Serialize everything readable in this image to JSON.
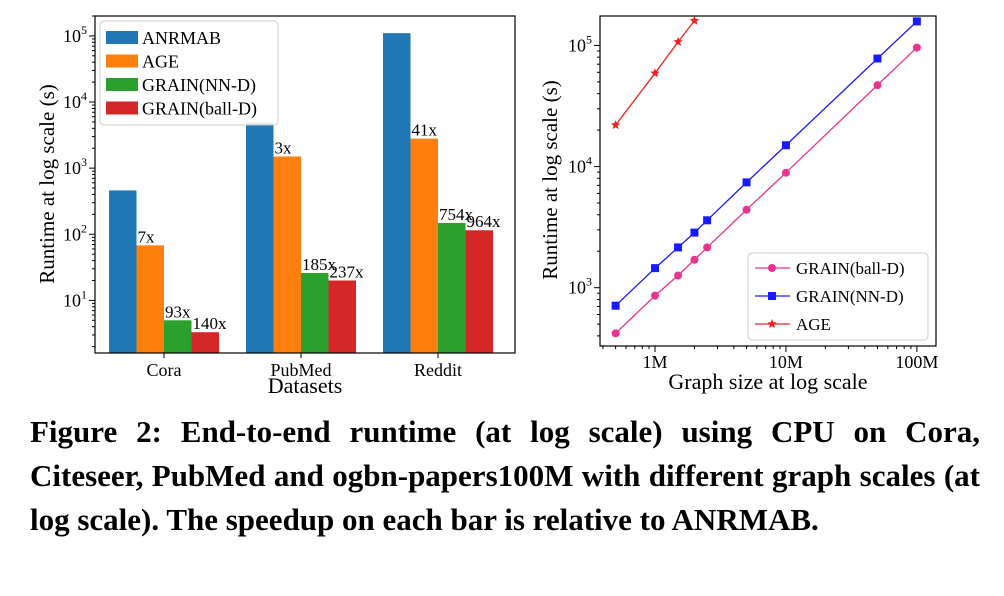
{
  "caption": "Figure 2: End-to-end runtime (at log scale) using CPU on Cora, Citeseer, PubMed and ogbn-papers100M with different graph scales (at log scale). The speedup on each bar is relative to ANRMAB.",
  "chart_data": [
    {
      "type": "bar",
      "scale": "log",
      "xlabel": "Datasets",
      "ylabel": "Runtime at log scale (s)",
      "categories": [
        "Cora",
        "PubMed",
        "Reddit"
      ],
      "ylim": [
        1.6,
        200000
      ],
      "yticks": [
        {
          "value": 10,
          "base": "10",
          "exp": "1"
        },
        {
          "value": 100,
          "base": "10",
          "exp": "2"
        },
        {
          "value": 1000,
          "base": "10",
          "exp": "3"
        },
        {
          "value": 10000,
          "base": "10",
          "exp": "4"
        },
        {
          "value": 100000,
          "base": "10",
          "exp": "5"
        }
      ],
      "legend_position": "top-left",
      "series": [
        {
          "name": "ANRMAB",
          "color": "#1f77b4",
          "values": [
            460,
            4900,
            110000
          ],
          "labels": [
            "",
            "",
            ""
          ]
        },
        {
          "name": "AGE",
          "color": "#ff7f0e",
          "values": [
            68,
            1500,
            2800
          ],
          "labels": [
            "7x",
            "3x",
            "41x"
          ]
        },
        {
          "name": "GRAIN(NN-D)",
          "color": "#2ca02c",
          "values": [
            5,
            26,
            148
          ],
          "labels": [
            "93x",
            "185x",
            "754x"
          ]
        },
        {
          "name": "GRAIN(ball-D)",
          "color": "#d62728",
          "values": [
            3.3,
            20,
            115
          ],
          "labels": [
            "140x",
            "237x",
            "964x"
          ]
        }
      ]
    },
    {
      "type": "line",
      "scale": "log-log",
      "xlabel": "Graph size at log scale",
      "ylabel": "Runtime at log scale (s)",
      "xlim": [
        380000,
        140000000
      ],
      "ylim": [
        330,
        175000
      ],
      "xticks": [
        {
          "value": 1000000,
          "label": "1M"
        },
        {
          "value": 10000000,
          "label": "10M"
        },
        {
          "value": 100000000,
          "label": "100M"
        }
      ],
      "yticks": [
        {
          "value": 1000,
          "base": "10",
          "exp": "3"
        },
        {
          "value": 10000,
          "base": "10",
          "exp": "4"
        },
        {
          "value": 100000,
          "base": "10",
          "exp": "5"
        }
      ],
      "legend_position": "lower-right",
      "series": [
        {
          "name": "GRAIN(ball-D)",
          "color": "#e8338f",
          "marker": "circle",
          "x": [
            500000,
            1000000,
            1500000,
            2000000,
            2500000,
            5000000,
            10000000,
            50000000,
            100000000
          ],
          "y": [
            420,
            860,
            1260,
            1700,
            2150,
            4400,
            8900,
            47000,
            96000
          ]
        },
        {
          "name": "GRAIN(NN-D)",
          "color": "#1a1aff",
          "marker": "square",
          "x": [
            500000,
            1000000,
            1500000,
            2000000,
            2500000,
            5000000,
            10000000,
            50000000,
            100000000
          ],
          "y": [
            710,
            1450,
            2150,
            2850,
            3600,
            7400,
            15000,
            78000,
            158000
          ]
        },
        {
          "name": "AGE",
          "color": "#ee2222",
          "marker": "star",
          "x": [
            500000,
            1000000,
            1500000,
            2000000
          ],
          "y": [
            22000,
            59000,
            107000,
            160000
          ]
        }
      ]
    }
  ]
}
